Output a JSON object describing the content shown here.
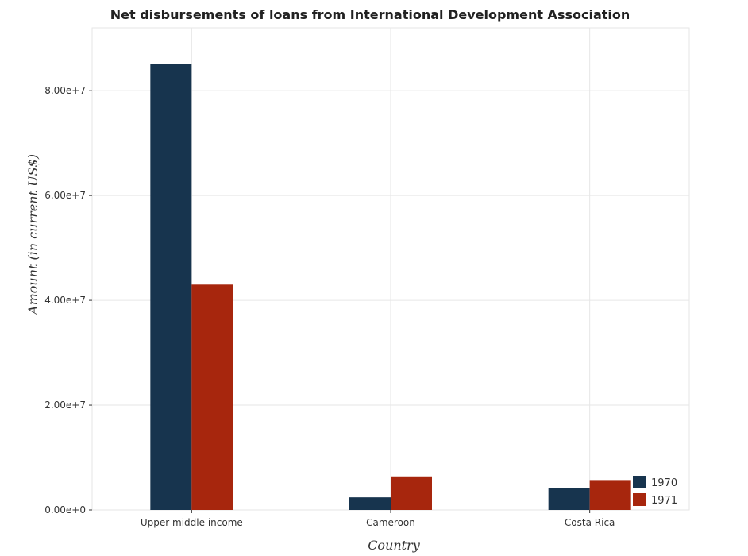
{
  "chart_data": {
    "type": "bar",
    "title": "Net disbursements of loans from International Development Association",
    "xlabel": "Country",
    "ylabel": "Amount (in current US$)",
    "categories": [
      "Upper middle income",
      "Cameroon",
      "Costa Rica"
    ],
    "series": [
      {
        "name": "1970",
        "color": "#17344e",
        "values": [
          85100000,
          2400000,
          4200000
        ]
      },
      {
        "name": "1971",
        "color": "#a7260d",
        "values": [
          43000000,
          6400000,
          5700000
        ]
      }
    ],
    "ylim": [
      0,
      92000000
    ],
    "yticks": [
      0,
      20000000,
      40000000,
      60000000,
      80000000
    ],
    "ytick_labels": [
      "0.00e+0",
      "2.00e+7",
      "4.00e+7",
      "6.00e+7",
      "8.00e+7"
    ],
    "grid": true,
    "legend_position": "bottom-right"
  }
}
